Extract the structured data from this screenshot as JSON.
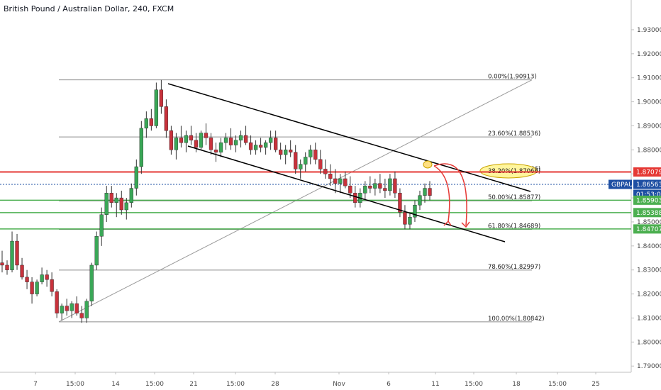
{
  "header": {
    "title": "British Pound / Australian Dollar, 240, FXCM"
  },
  "colors": {
    "up": "#3aa757",
    "down": "#c8323c",
    "wick": "#333333",
    "fib": "#8c8c8c",
    "red_line": "#e53935",
    "green_line": "#4caf50",
    "blue_line": "#1e4fa3",
    "highlight": "#fff59d",
    "channel": "#000000"
  },
  "chart_data": {
    "type": "candlestick",
    "title": "British Pound / Australian Dollar, 240, FXCM",
    "ylim": [
      1.788,
      1.935
    ],
    "y_ticks": [
      "1.93000",
      "1.92000",
      "1.91000",
      "1.90000",
      "1.89000",
      "1.88000",
      "1.87000",
      "1.86000",
      "1.85000",
      "1.84000",
      "1.83000",
      "1.82000",
      "1.81000",
      "1.80000",
      "1.79000"
    ],
    "x_ticks": [
      "7",
      "15:00",
      "14",
      "15:00",
      "21",
      "15:00",
      "28",
      "Nov",
      "6",
      "11",
      "15:00",
      "18",
      "15:00",
      "25"
    ],
    "fib_levels": [
      {
        "label": "0.00%(1.90913)",
        "value": 1.90913
      },
      {
        "label": "23.60%(1.88536)",
        "value": 1.88536
      },
      {
        "label": "38.20%(1.87066)",
        "value": 1.87066
      },
      {
        "label": "50.00%(1.85877)",
        "value": 1.85877
      },
      {
        "label": "61.80%(1.84689)",
        "value": 1.84689
      },
      {
        "label": "78.60%(1.82997)",
        "value": 1.82997
      },
      {
        "label": "100.00%(1.80842)",
        "value": 1.80842
      }
    ],
    "price_tags": [
      {
        "label": "1.87079",
        "value": 1.87079,
        "color": "#e53935"
      },
      {
        "label": "GBPAUD",
        "value": 1.86563,
        "color": "#1e4fa3"
      },
      {
        "label": "1.86563",
        "value": 1.86563,
        "color": "#1e4fa3"
      },
      {
        "label": "01:53:05",
        "value": 1.86563,
        "color": "#1e4fa3"
      },
      {
        "label": "1.85903",
        "value": 1.85903,
        "color": "#4caf50"
      },
      {
        "label": "1.85388",
        "value": 1.85388,
        "color": "#4caf50"
      },
      {
        "label": "1.84707",
        "value": 1.84707,
        "color": "#4caf50"
      }
    ],
    "candles": [
      [
        1.833,
        1.838,
        1.829,
        1.832
      ],
      [
        1.832,
        1.834,
        1.828,
        1.83
      ],
      [
        1.83,
        1.846,
        1.829,
        1.842
      ],
      [
        1.842,
        1.845,
        1.83,
        1.832
      ],
      [
        1.832,
        1.835,
        1.826,
        1.827
      ],
      [
        1.827,
        1.83,
        1.822,
        1.825
      ],
      [
        1.825,
        1.827,
        1.816,
        1.82
      ],
      [
        1.82,
        1.826,
        1.819,
        1.825
      ],
      [
        1.825,
        1.831,
        1.824,
        1.828
      ],
      [
        1.828,
        1.83,
        1.823,
        1.826
      ],
      [
        1.826,
        1.829,
        1.819,
        1.821
      ],
      [
        1.821,
        1.822,
        1.81,
        1.812
      ],
      [
        1.812,
        1.816,
        1.809,
        1.815
      ],
      [
        1.815,
        1.818,
        1.811,
        1.813
      ],
      [
        1.813,
        1.817,
        1.81,
        1.816
      ],
      [
        1.816,
        1.819,
        1.811,
        1.812
      ],
      [
        1.812,
        1.815,
        1.808,
        1.81
      ],
      [
        1.81,
        1.818,
        1.808,
        1.817
      ],
      [
        1.817,
        1.833,
        1.815,
        1.832
      ],
      [
        1.832,
        1.846,
        1.83,
        1.844
      ],
      [
        1.844,
        1.856,
        1.84,
        1.853
      ],
      [
        1.853,
        1.865,
        1.85,
        1.862
      ],
      [
        1.862,
        1.865,
        1.856,
        1.858
      ],
      [
        1.858,
        1.862,
        1.852,
        1.86
      ],
      [
        1.86,
        1.863,
        1.853,
        1.855
      ],
      [
        1.855,
        1.86,
        1.851,
        1.858
      ],
      [
        1.858,
        1.866,
        1.856,
        1.864
      ],
      [
        1.864,
        1.876,
        1.861,
        1.873
      ],
      [
        1.873,
        1.892,
        1.87,
        1.889
      ],
      [
        1.889,
        1.896,
        1.885,
        1.893
      ],
      [
        1.893,
        1.897,
        1.888,
        1.89
      ],
      [
        1.89,
        1.908,
        1.889,
        1.905
      ],
      [
        1.905,
        1.9091,
        1.895,
        1.898
      ],
      [
        1.898,
        1.901,
        1.885,
        1.888
      ],
      [
        1.888,
        1.89,
        1.878,
        1.88
      ],
      [
        1.88,
        1.887,
        1.876,
        1.885
      ],
      [
        1.885,
        1.89,
        1.881,
        1.883
      ],
      [
        1.883,
        1.888,
        1.879,
        1.886
      ],
      [
        1.886,
        1.89,
        1.882,
        1.884
      ],
      [
        1.884,
        1.887,
        1.879,
        1.881
      ],
      [
        1.881,
        1.888,
        1.88,
        1.887
      ],
      [
        1.887,
        1.891,
        1.882,
        1.885
      ],
      [
        1.885,
        1.887,
        1.878,
        1.88
      ],
      [
        1.88,
        1.883,
        1.875,
        1.879
      ],
      [
        1.879,
        1.885,
        1.877,
        1.883
      ],
      [
        1.883,
        1.887,
        1.88,
        1.885
      ],
      [
        1.885,
        1.889,
        1.88,
        1.882
      ],
      [
        1.882,
        1.886,
        1.879,
        1.884
      ],
      [
        1.884,
        1.888,
        1.881,
        1.886
      ],
      [
        1.886,
        1.89,
        1.882,
        1.883
      ],
      [
        1.883,
        1.886,
        1.878,
        1.88
      ],
      [
        1.88,
        1.884,
        1.878,
        1.882
      ],
      [
        1.882,
        1.885,
        1.879,
        1.881
      ],
      [
        1.881,
        1.884,
        1.878,
        1.883
      ],
      [
        1.883,
        1.888,
        1.88,
        1.885
      ],
      [
        1.885,
        1.888,
        1.879,
        1.88
      ],
      [
        1.88,
        1.883,
        1.876,
        1.878
      ],
      [
        1.878,
        1.882,
        1.874,
        1.88
      ],
      [
        1.88,
        1.884,
        1.877,
        1.879
      ],
      [
        1.879,
        1.882,
        1.87,
        1.872
      ],
      [
        1.872,
        1.876,
        1.868,
        1.874
      ],
      [
        1.874,
        1.879,
        1.871,
        1.877
      ],
      [
        1.877,
        1.882,
        1.874,
        1.88
      ],
      [
        1.88,
        1.883,
        1.874,
        1.876
      ],
      [
        1.876,
        1.88,
        1.87,
        1.872
      ],
      [
        1.872,
        1.876,
        1.868,
        1.87
      ],
      [
        1.87,
        1.874,
        1.865,
        1.868
      ],
      [
        1.868,
        1.872,
        1.862,
        1.866
      ],
      [
        1.866,
        1.87,
        1.862,
        1.868
      ],
      [
        1.868,
        1.871,
        1.864,
        1.865
      ],
      [
        1.865,
        1.869,
        1.86,
        1.862
      ],
      [
        1.862,
        1.865,
        1.856,
        1.858
      ],
      [
        1.858,
        1.864,
        1.856,
        1.862
      ],
      [
        1.862,
        1.867,
        1.859,
        1.865
      ],
      [
        1.865,
        1.869,
        1.862,
        1.864
      ],
      [
        1.864,
        1.868,
        1.861,
        1.866
      ],
      [
        1.866,
        1.87,
        1.862,
        1.864
      ],
      [
        1.864,
        1.868,
        1.86,
        1.863
      ],
      [
        1.863,
        1.87,
        1.861,
        1.868
      ],
      [
        1.868,
        1.871,
        1.86,
        1.862
      ],
      [
        1.862,
        1.864,
        1.852,
        1.854
      ],
      [
        1.854,
        1.857,
        1.847,
        1.849
      ],
      [
        1.849,
        1.854,
        1.847,
        1.852
      ],
      [
        1.852,
        1.859,
        1.85,
        1.857
      ],
      [
        1.857,
        1.863,
        1.855,
        1.861
      ],
      [
        1.861,
        1.866,
        1.858,
        1.864
      ],
      [
        1.864,
        1.867,
        1.859,
        1.861
      ]
    ]
  }
}
